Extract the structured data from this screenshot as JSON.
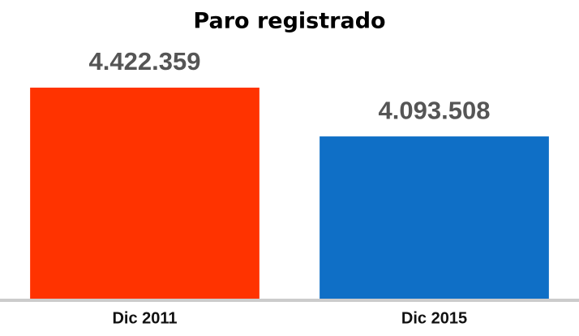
{
  "chart_data": {
    "type": "bar",
    "title": "Paro registrado",
    "categories": [
      "Dic 2011",
      "Dic 2015"
    ],
    "values": [
      4422359,
      4093508
    ],
    "value_labels": [
      "4.422.359",
      "4.093.508"
    ],
    "colors": [
      "#ff3300",
      "#0f6fc6"
    ],
    "ylim": [
      3000000,
      4600000
    ]
  }
}
